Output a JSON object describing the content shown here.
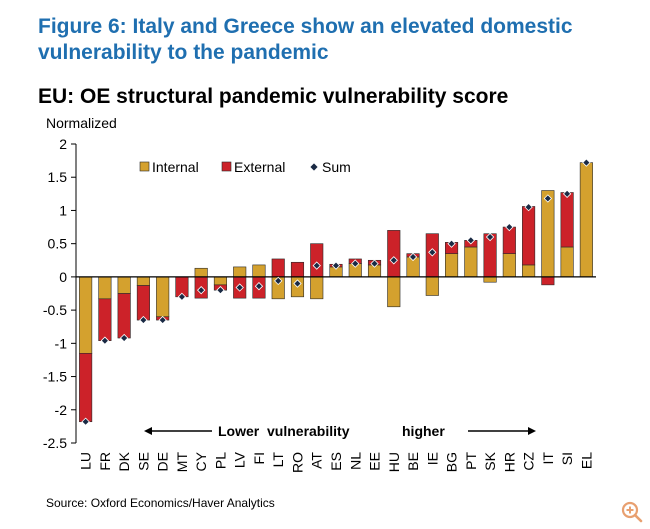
{
  "figure_title": "Figure 6: Italy and Greece show an elevated domestic vulnerability to the pandemic",
  "source": "Source: Oxford Economics/Haver Analytics",
  "annotation": {
    "lower": "Lower  vulnerability",
    "higher": "higher"
  },
  "zoom_button": {
    "icon": "zoom-in-icon",
    "color": "#e8a070"
  },
  "colors": {
    "internal": "#d4a12e",
    "external": "#cc2229",
    "sum": "#1a2a44"
  },
  "chart_data": {
    "type": "bar",
    "stacked": true,
    "title": "EU: OE structural pandemic vulnerability score",
    "ylabel": "Normalized",
    "ylim": [
      -2.5,
      2
    ],
    "yticks": [
      2,
      1.5,
      1,
      0.5,
      0,
      -0.5,
      -1,
      -1.5,
      -2,
      -2.5
    ],
    "ytick_labels": [
      "2",
      "1.5",
      "1",
      "0.5",
      "0",
      "-0.5",
      "-1",
      "-1.5",
      "-2",
      "-2.5"
    ],
    "categories": [
      "LU",
      "FR",
      "DK",
      "SE",
      "DE",
      "MT",
      "CY",
      "PL",
      "LV",
      "FI",
      "LT",
      "RO",
      "AT",
      "ES",
      "NL",
      "EE",
      "HU",
      "BE",
      "IE",
      "BG",
      "PT",
      "SK",
      "HR",
      "CZ",
      "IT",
      "SI",
      "EL"
    ],
    "series": [
      {
        "name": "Internal",
        "values": [
          -1.15,
          -0.33,
          -0.25,
          -0.13,
          -0.6,
          0.0,
          0.13,
          -0.12,
          0.15,
          0.18,
          -0.33,
          -0.3,
          -0.33,
          0.15,
          0.2,
          0.18,
          -0.45,
          0.3,
          -0.28,
          0.35,
          0.45,
          -0.08,
          0.35,
          0.18,
          1.3,
          0.45,
          1.72
        ]
      },
      {
        "name": "External",
        "values": [
          -1.03,
          -0.63,
          -0.67,
          -0.52,
          -0.05,
          -0.3,
          -0.32,
          -0.08,
          -0.32,
          -0.32,
          0.27,
          0.22,
          0.5,
          0.04,
          0.07,
          0.07,
          0.7,
          0.05,
          0.65,
          0.17,
          0.1,
          0.65,
          0.4,
          0.88,
          -0.12,
          0.82,
          0.0
        ]
      },
      {
        "name": "Sum",
        "values": [
          -2.18,
          -0.96,
          -0.92,
          -0.65,
          -0.65,
          -0.3,
          -0.2,
          -0.2,
          -0.16,
          -0.14,
          -0.06,
          -0.1,
          0.17,
          0.17,
          0.2,
          0.2,
          0.25,
          0.3,
          0.37,
          0.5,
          0.55,
          0.6,
          0.75,
          1.05,
          1.18,
          1.25,
          1.72
        ]
      }
    ],
    "legend": [
      "Internal",
      "External",
      "Sum"
    ],
    "legend_position": "top-left",
    "grid": false
  }
}
